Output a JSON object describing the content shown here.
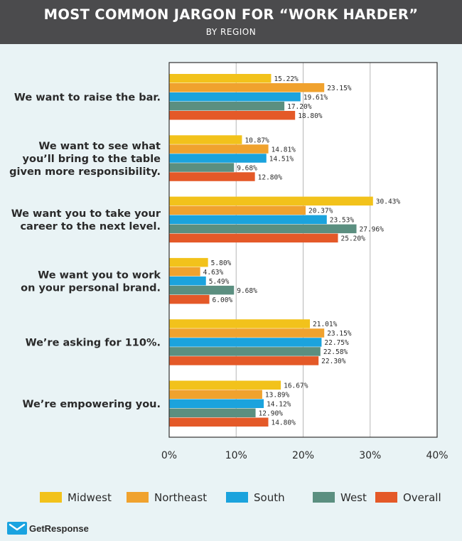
{
  "header": {
    "title": "MOST COMMON JARGON FOR “WORK HARDER”",
    "subtitle": "BY REGION"
  },
  "logo": {
    "text": "GetResponse",
    "icon": "envelope-icon"
  },
  "colors": {
    "header_bg": "#4b4b4d",
    "background": "#e9f3f5",
    "Midwest": "#f2c21b",
    "Northeast": "#f0a22e",
    "South": "#1ba3dd",
    "West": "#5b8f80",
    "Overall": "#e45928"
  },
  "chart_data": {
    "type": "bar",
    "orientation": "horizontal",
    "title": "MOST COMMON JARGON FOR “WORK HARDER”",
    "subtitle": "BY REGION",
    "categories": [
      [
        "We want to raise the bar."
      ],
      [
        "We want to see what",
        "you’ll bring to the table",
        "given more responsibility."
      ],
      [
        "We want you to take your",
        "career to the next level."
      ],
      [
        "We want you to work",
        "on your personal brand."
      ],
      [
        "We’re asking for 110%."
      ],
      [
        "We’re empowering you."
      ]
    ],
    "series": [
      {
        "name": "Midwest",
        "values": [
          15.22,
          10.87,
          30.43,
          5.8,
          21.01,
          16.67
        ]
      },
      {
        "name": "Northeast",
        "values": [
          23.15,
          14.81,
          20.37,
          4.63,
          23.15,
          13.89
        ]
      },
      {
        "name": "South",
        "values": [
          19.61,
          14.51,
          23.53,
          5.49,
          22.75,
          14.12
        ]
      },
      {
        "name": "West",
        "values": [
          17.2,
          9.68,
          27.96,
          9.68,
          22.58,
          12.9
        ]
      },
      {
        "name": "Overall",
        "values": [
          18.8,
          12.8,
          25.2,
          6.0,
          22.3,
          14.8
        ]
      }
    ],
    "data_labels": [
      [
        "15.22%",
        "10.87%",
        "30.43%",
        "5.80%",
        "21.01%",
        "16.67%"
      ],
      [
        "23.15%",
        "14.81%",
        "20.37%",
        "4.63%",
        "23.15%",
        "13.89%"
      ],
      [
        "19.61%",
        "14.51%",
        "23.53%",
        "5.49%",
        "22.75%",
        "14.12%"
      ],
      [
        "17.20%",
        "9.68%",
        "27.96%",
        "9.68%",
        "22.58%",
        "12.90%"
      ],
      [
        "18.80%",
        "12.80%",
        "25.20%",
        "6.00%",
        "22.30%",
        "14.80%"
      ]
    ],
    "xlim": [
      0,
      40
    ],
    "xticks": [
      0,
      10,
      20,
      30,
      40
    ],
    "xtick_labels": [
      "0%",
      "10%",
      "20%",
      "30%",
      "40%"
    ],
    "grid": true,
    "legend": "bottom"
  }
}
